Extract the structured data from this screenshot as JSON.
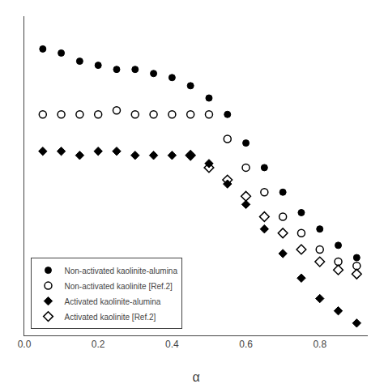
{
  "chart_data": {
    "type": "scatter",
    "xlabel": "α",
    "xlim": [
      0.0,
      0.93
    ],
    "xticks": [
      {
        "value": 0.0,
        "label": "0.0"
      },
      0.2,
      0.4,
      0.6,
      0.8
    ],
    "ylim": [
      0.18,
      0.96
    ],
    "yticks": [],
    "tick_labels": "x",
    "grid": false,
    "legend": "lower left",
    "series": [
      {
        "name": "Non-activated kaolinite-alumina",
        "color": "black",
        "marker": "circle",
        "x": [
          0.05,
          0.1,
          0.15,
          0.2,
          0.25,
          0.3,
          0.35,
          0.4,
          0.45,
          0.5,
          0.55,
          0.6,
          0.65,
          0.7,
          0.75,
          0.8,
          0.85,
          0.9
        ],
        "values": [
          0.88,
          0.87,
          0.85,
          0.84,
          0.83,
          0.83,
          0.82,
          0.81,
          0.79,
          0.76,
          0.72,
          0.65,
          0.59,
          0.53,
          0.48,
          0.44,
          0.4,
          0.37
        ]
      },
      {
        "name": "Non-activated kaolinite [Ref.2]",
        "color": "black",
        "marker": "circle-open",
        "x": [
          0.05,
          0.1,
          0.15,
          0.2,
          0.25,
          0.3,
          0.35,
          0.4,
          0.45,
          0.5,
          0.55,
          0.6,
          0.65,
          0.7,
          0.75,
          0.8,
          0.85,
          0.9
        ],
        "values": [
          0.72,
          0.72,
          0.72,
          0.72,
          0.73,
          0.72,
          0.72,
          0.72,
          0.72,
          0.72,
          0.66,
          0.59,
          0.53,
          0.47,
          0.43,
          0.39,
          0.36,
          0.35
        ]
      },
      {
        "name": "Activated kaolinite-alumina",
        "color": "black",
        "marker": "diamond",
        "x": [
          0.05,
          0.1,
          0.15,
          0.2,
          0.25,
          0.3,
          0.35,
          0.4,
          0.45,
          0.5,
          0.55,
          0.6,
          0.65,
          0.7,
          0.75,
          0.8,
          0.85,
          0.9
        ],
        "values": [
          0.63,
          0.63,
          0.62,
          0.63,
          0.63,
          0.62,
          0.62,
          0.62,
          0.62,
          0.6,
          0.55,
          0.5,
          0.44,
          0.38,
          0.32,
          0.27,
          0.24,
          0.21
        ]
      },
      {
        "name": "Activated kaolinite [Ref.2]",
        "color": "black",
        "marker": "diamond-open",
        "x": [
          0.45,
          0.5,
          0.55,
          0.6,
          0.65,
          0.7,
          0.75,
          0.8,
          0.85,
          0.9
        ],
        "values": [
          0.62,
          0.59,
          0.56,
          0.52,
          0.47,
          0.43,
          0.39,
          0.36,
          0.34,
          0.33
        ]
      }
    ]
  }
}
